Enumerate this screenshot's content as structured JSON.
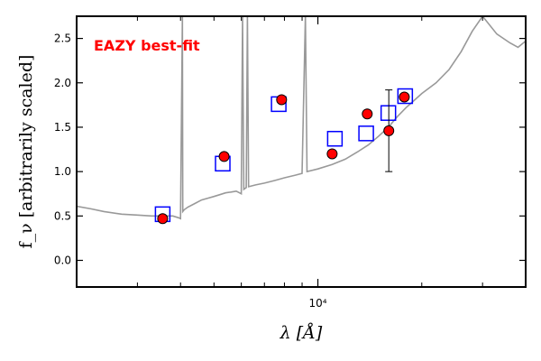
{
  "chart_data": {
    "type": "scatter",
    "title": "",
    "xlabel": "λ [Å]",
    "ylabel": "f_ν [arbitrarily scaled]",
    "x_scale": "log",
    "xlim": [
      2000,
      40000
    ],
    "ylim": [
      -0.3,
      2.75
    ],
    "y_ticks": [
      0.0,
      0.5,
      1.0,
      1.5,
      2.0,
      2.5
    ],
    "y_tick_labels": [
      "0.0",
      "0.5",
      "1.0",
      "1.5",
      "2.0",
      "2.5"
    ],
    "x_major_ticks": [
      10000
    ],
    "x_tick_labels": [
      "10⁴"
    ],
    "x_minor_ticks": [
      3000,
      4000,
      5000,
      6000,
      7000,
      8000,
      9000,
      20000,
      30000
    ],
    "annotation": {
      "text": "EAZY best-fit",
      "color": "#ff0000",
      "position": "top-left"
    },
    "grid": false,
    "series": [
      {
        "style": "line",
        "color": "#999999",
        "points": [
          [
            2000,
            0.61
          ],
          [
            2200,
            0.58
          ],
          [
            2400,
            0.55
          ],
          [
            2700,
            0.52
          ],
          [
            3000,
            0.51
          ],
          [
            3300,
            0.5
          ],
          [
            3600,
            0.5
          ],
          [
            3800,
            0.5
          ],
          [
            3950,
            0.48
          ],
          [
            4000,
            0.47
          ],
          [
            4050,
            2.75
          ],
          [
            4060,
            0.55
          ],
          [
            4100,
            0.57
          ],
          [
            4200,
            0.6
          ],
          [
            4400,
            0.64
          ],
          [
            4600,
            0.68
          ],
          [
            4800,
            0.7
          ],
          [
            5000,
            0.72
          ],
          [
            5200,
            0.74
          ],
          [
            5400,
            0.76
          ],
          [
            5600,
            0.77
          ],
          [
            5800,
            0.78
          ],
          [
            6000,
            0.75
          ],
          [
            6050,
            2.75
          ],
          [
            6100,
            0.8
          ],
          [
            6200,
            0.82
          ],
          [
            6250,
            2.75
          ],
          [
            6300,
            0.83
          ],
          [
            6600,
            0.85
          ],
          [
            7000,
            0.87
          ],
          [
            7500,
            0.9
          ],
          [
            8000,
            0.93
          ],
          [
            8600,
            0.96
          ],
          [
            9000,
            0.98
          ],
          [
            9200,
            2.75
          ],
          [
            9300,
            1.0
          ],
          [
            10000,
            1.03
          ],
          [
            11000,
            1.08
          ],
          [
            12000,
            1.14
          ],
          [
            13000,
            1.22
          ],
          [
            14000,
            1.3
          ],
          [
            15000,
            1.4
          ],
          [
            16000,
            1.5
          ],
          [
            17000,
            1.62
          ],
          [
            18000,
            1.72
          ],
          [
            19000,
            1.8
          ],
          [
            20000,
            1.88
          ],
          [
            22000,
            2.0
          ],
          [
            24000,
            2.15
          ],
          [
            26000,
            2.35
          ],
          [
            28000,
            2.58
          ],
          [
            30000,
            2.75
          ],
          [
            33000,
            2.55
          ],
          [
            36000,
            2.45
          ],
          [
            38000,
            2.4
          ],
          [
            40000,
            2.47
          ]
        ]
      },
      {
        "style": "open-square",
        "color": "#0000ff",
        "points": [
          [
            3550,
            0.52
          ],
          [
            5300,
            1.09
          ],
          [
            7700,
            1.76
          ],
          [
            11200,
            1.37
          ],
          [
            13800,
            1.43
          ],
          [
            16000,
            1.66
          ],
          [
            17900,
            1.85
          ]
        ]
      },
      {
        "style": "filled-circle",
        "color": "#ff0000",
        "points": [
          [
            3550,
            0.47
          ],
          [
            5350,
            1.17
          ],
          [
            7850,
            1.81
          ],
          [
            11000,
            1.2
          ],
          [
            13900,
            1.65
          ],
          [
            16050,
            1.46
          ],
          [
            17800,
            1.84
          ]
        ],
        "errors": [
          0,
          0,
          0,
          0,
          0,
          0.46,
          0
        ]
      }
    ]
  }
}
